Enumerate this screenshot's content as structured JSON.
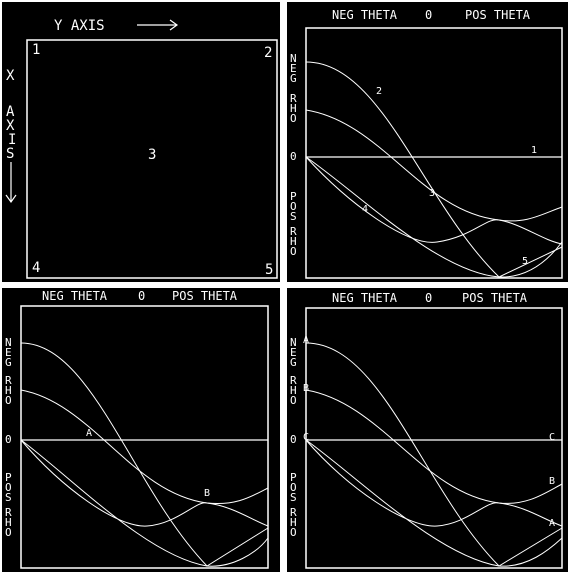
{
  "colors": {
    "background": "#000000",
    "foreground": "#ffffff",
    "page": "#ffffff"
  },
  "panel1": {
    "y_axis_label": "Y  AXIS",
    "x_axis_letters": [
      "X",
      "A",
      "X",
      "I",
      "S"
    ],
    "corner_labels": {
      "top_left": "1",
      "top_right": "2",
      "center": "3",
      "bottom_left": "4",
      "bottom_right": "5"
    }
  },
  "hough_header": {
    "neg_theta": "NEG THETA",
    "zero": "0",
    "pos_theta": "POS THETA"
  },
  "rho_axis": {
    "neg_letters": [
      "N",
      "E",
      "G",
      "",
      "R",
      "H",
      "O"
    ],
    "zero": "0",
    "pos_letters": [
      "P",
      "O",
      "S",
      "",
      "R",
      "H",
      "O"
    ]
  },
  "panel2": {
    "curve_labels": [
      "1",
      "2",
      "3",
      "4",
      "5"
    ]
  },
  "panel3": {
    "intersection_labels": [
      "A",
      "B"
    ]
  },
  "panel4": {
    "line_labels": [
      "A",
      "B",
      "C",
      "C",
      "B",
      "A"
    ]
  },
  "chart_data": {
    "type": "line",
    "x": [
      "NEG THETA",
      "0",
      "POS THETA"
    ],
    "series": [
      {
        "name": "1",
        "shape": "horizontal line at rho = 0"
      },
      {
        "name": "2",
        "shape": "sinusoid from max neg rho, crossing zero, to max pos rho"
      },
      {
        "name": "3",
        "shape": "sinusoid from mid neg rho to mid pos rho"
      },
      {
        "name": "4",
        "shape": "sinusoid from zero dipping to pos rho and back"
      },
      {
        "name": "5",
        "shape": "sinusoid from zero to deepest pos rho"
      }
    ]
  }
}
